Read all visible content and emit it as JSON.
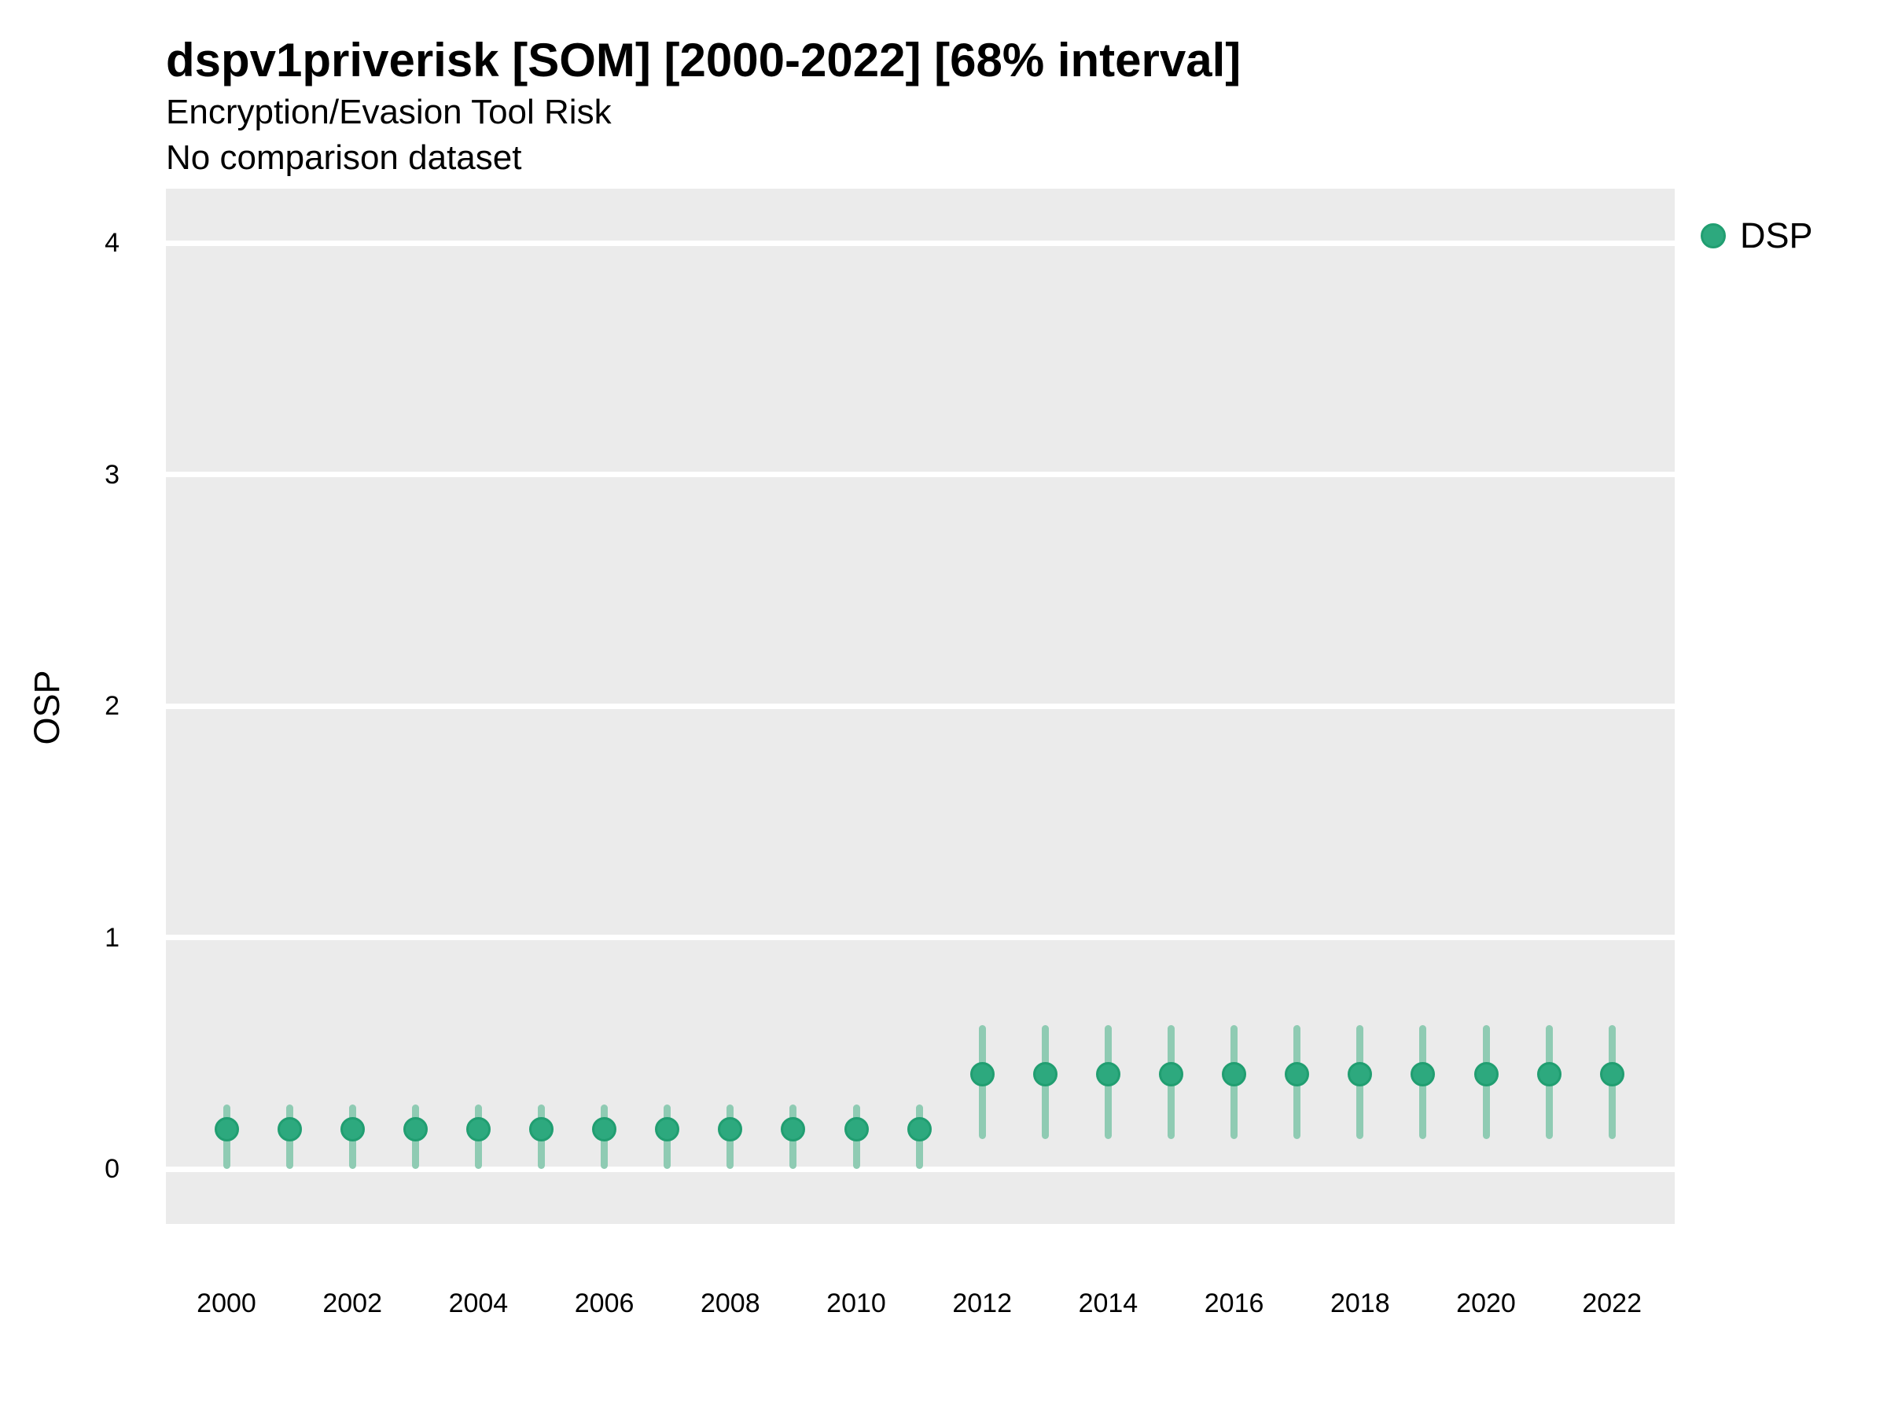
{
  "header": {
    "title": "dspv1priverisk [SOM] [2000-2022] [68% interval]",
    "subtitle": "Encryption/Evasion Tool Risk",
    "note": "No comparison dataset"
  },
  "colors": {
    "point_fill": "#2DA97E",
    "point_stroke": "#219E71",
    "interval_bar": "#8FCBB3",
    "panel_background": "#EBEBEB",
    "gridline": "#FFFFFF",
    "text": "#000000"
  },
  "chart_data": {
    "type": "scatter",
    "title": "dspv1priverisk [SOM] [2000-2022] [68% interval]",
    "subtitle": "Encryption/Evasion Tool Risk",
    "note": "No comparison dataset",
    "xlabel": "",
    "ylabel": "OSP",
    "interval_level": "68%",
    "ylim": [
      -0.24,
      4.23
    ],
    "y_ticks": [
      "0",
      "1",
      "2",
      "3",
      "4"
    ],
    "x_ticks": [
      "2000",
      "2002",
      "2004",
      "2006",
      "2008",
      "2010",
      "2012",
      "2014",
      "2016",
      "2018",
      "2020",
      "2022"
    ],
    "grid": "major-horizontal-only",
    "legend": {
      "label": "DSP",
      "position": "right-top"
    },
    "series": [
      {
        "name": "DSP",
        "points": [
          {
            "x": 2000,
            "y": 0.17,
            "lo": 0.0,
            "hi": 0.28
          },
          {
            "x": 2001,
            "y": 0.17,
            "lo": 0.0,
            "hi": 0.28
          },
          {
            "x": 2002,
            "y": 0.17,
            "lo": 0.0,
            "hi": 0.28
          },
          {
            "x": 2003,
            "y": 0.17,
            "lo": 0.0,
            "hi": 0.28
          },
          {
            "x": 2004,
            "y": 0.17,
            "lo": 0.0,
            "hi": 0.28
          },
          {
            "x": 2005,
            "y": 0.17,
            "lo": 0.0,
            "hi": 0.28
          },
          {
            "x": 2006,
            "y": 0.17,
            "lo": 0.0,
            "hi": 0.28
          },
          {
            "x": 2007,
            "y": 0.17,
            "lo": 0.0,
            "hi": 0.28
          },
          {
            "x": 2008,
            "y": 0.17,
            "lo": 0.0,
            "hi": 0.28
          },
          {
            "x": 2009,
            "y": 0.17,
            "lo": 0.0,
            "hi": 0.28
          },
          {
            "x": 2010,
            "y": 0.17,
            "lo": 0.0,
            "hi": 0.28
          },
          {
            "x": 2011,
            "y": 0.17,
            "lo": 0.0,
            "hi": 0.28
          },
          {
            "x": 2012,
            "y": 0.41,
            "lo": 0.13,
            "hi": 0.62
          },
          {
            "x": 2013,
            "y": 0.41,
            "lo": 0.13,
            "hi": 0.62
          },
          {
            "x": 2014,
            "y": 0.41,
            "lo": 0.13,
            "hi": 0.62
          },
          {
            "x": 2015,
            "y": 0.41,
            "lo": 0.13,
            "hi": 0.62
          },
          {
            "x": 2016,
            "y": 0.41,
            "lo": 0.13,
            "hi": 0.62
          },
          {
            "x": 2017,
            "y": 0.41,
            "lo": 0.13,
            "hi": 0.62
          },
          {
            "x": 2018,
            "y": 0.41,
            "lo": 0.13,
            "hi": 0.62
          },
          {
            "x": 2019,
            "y": 0.41,
            "lo": 0.13,
            "hi": 0.62
          },
          {
            "x": 2020,
            "y": 0.41,
            "lo": 0.13,
            "hi": 0.62
          },
          {
            "x": 2021,
            "y": 0.41,
            "lo": 0.13,
            "hi": 0.62
          },
          {
            "x": 2022,
            "y": 0.41,
            "lo": 0.13,
            "hi": 0.62
          }
        ]
      }
    ]
  }
}
